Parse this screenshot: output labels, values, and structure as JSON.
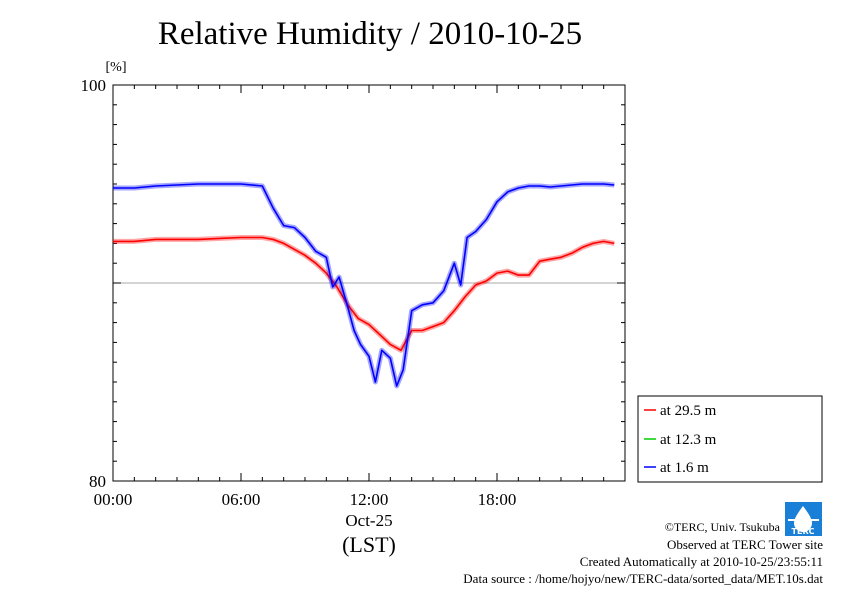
{
  "chart_data": {
    "type": "line",
    "title": "Relative Humidity / 2010-10-25",
    "ylabel": "[%]",
    "ylim": [
      80,
      100
    ],
    "y_ticks": [
      "100",
      "80"
    ],
    "xlim": [
      0,
      24
    ],
    "x_ticks": [
      "00:00",
      "06:00",
      "12:00",
      "18:00"
    ],
    "x_date_label": "Oct-25",
    "x_unit_label": "(LST)",
    "grid_y": [
      90
    ],
    "legend_position": "lower-right, outside plot",
    "series": [
      {
        "name": "at 29.5 m",
        "color": "#ff0000",
        "x": [
          0,
          1,
          2,
          3,
          4,
          5,
          6,
          7,
          7.5,
          8,
          8.5,
          9,
          9.5,
          10,
          10.5,
          11,
          11.5,
          12,
          12.5,
          13,
          13.5,
          14,
          14.5,
          15,
          15.5,
          16,
          16.5,
          17,
          17.5,
          18,
          18.5,
          19,
          19.5,
          20,
          20.5,
          21,
          21.5,
          22,
          22.5,
          23,
          23.5
        ],
        "values": [
          92.1,
          92.1,
          92.2,
          92.2,
          92.2,
          92.25,
          92.3,
          92.3,
          92.2,
          92.0,
          91.7,
          91.4,
          91.0,
          90.5,
          89.8,
          88.9,
          88.2,
          87.9,
          87.4,
          86.9,
          86.6,
          87.6,
          87.6,
          87.8,
          88.0,
          88.6,
          89.3,
          89.9,
          90.1,
          90.5,
          90.6,
          90.4,
          90.4,
          91.1,
          91.2,
          91.3,
          91.5,
          91.8,
          92.0,
          92.1,
          92.0
        ]
      },
      {
        "name": "at 12.3 m",
        "color": "#00cc00",
        "x": [],
        "values": []
      },
      {
        "name": "at 1.6 m",
        "color": "#0000ff",
        "x": [
          0,
          1,
          2,
          3,
          4,
          5,
          6,
          7,
          7.5,
          8,
          8.5,
          9,
          9.5,
          10,
          10.3,
          10.6,
          11,
          11.3,
          11.6,
          12,
          12.3,
          12.6,
          13,
          13.3,
          13.6,
          14,
          14.5,
          15,
          15.5,
          16,
          16.3,
          16.6,
          17,
          17.5,
          18,
          18.5,
          19,
          19.5,
          20,
          20.5,
          21,
          22,
          23,
          23.5
        ],
        "values": [
          94.8,
          94.8,
          94.9,
          94.95,
          95.0,
          95.0,
          95.0,
          94.9,
          93.8,
          92.9,
          92.8,
          92.3,
          91.6,
          91.3,
          89.8,
          90.3,
          88.8,
          87.6,
          86.9,
          86.3,
          85.0,
          86.6,
          86.2,
          84.8,
          85.6,
          88.6,
          88.9,
          89.0,
          89.6,
          91.0,
          89.9,
          92.3,
          92.6,
          93.2,
          94.1,
          94.6,
          94.8,
          94.9,
          94.9,
          94.85,
          94.9,
          95.0,
          95.0,
          94.95
        ]
      }
    ]
  },
  "footer": {
    "copyright": "©TERC, Univ. Tsukuba",
    "observed": "Observed at TERC Tower site",
    "created": "Created Automatically at 2010-10-25/23:55:11",
    "source": "Data source : /home/hojyo/new/TERC-data/sorted_data/MET.10s.dat"
  },
  "logo": {
    "text": "TERC"
  }
}
